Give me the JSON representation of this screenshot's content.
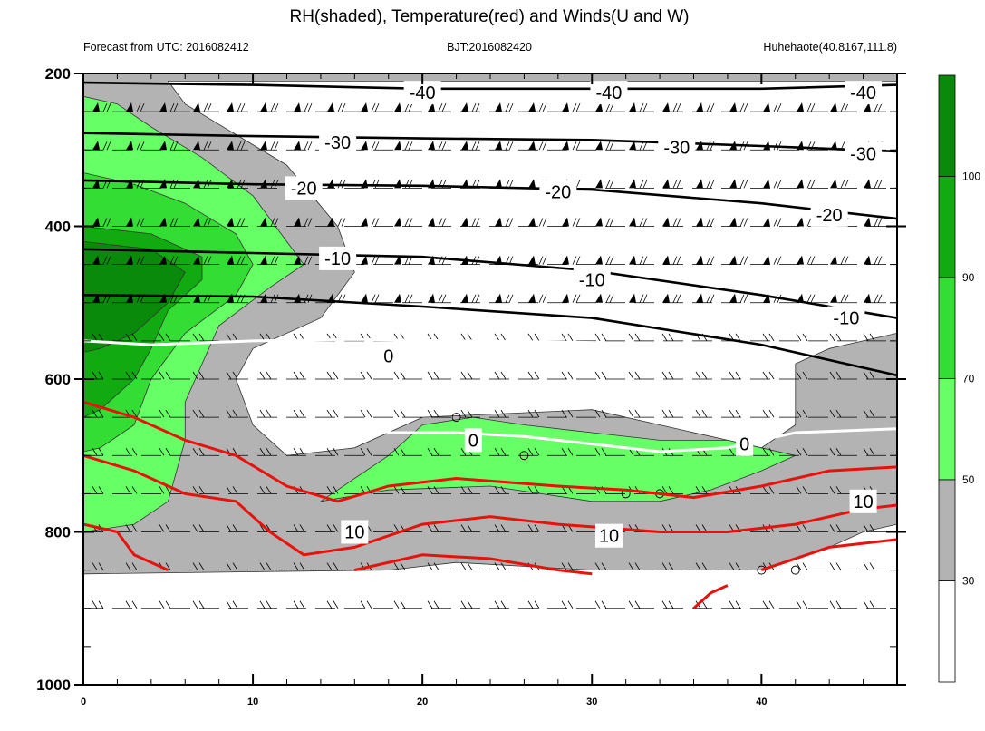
{
  "chart_data": {
    "type": "contour",
    "title": "RH(shaded), Temperature(red) and Winds(U and W)",
    "header": {
      "left": "Forecast from UTC: 2016082412",
      "center": "BJT:2016082420",
      "right": "Huhehaote(40.8167,111.8)"
    },
    "xlabel": "",
    "ylabel": "",
    "x_range": [
      0,
      48
    ],
    "y_range": [
      200,
      1000
    ],
    "y_reversed": true,
    "x_ticks": [
      0,
      10,
      20,
      30,
      40
    ],
    "y_ticks": [
      200,
      400,
      600,
      800,
      1000
    ],
    "grid": false,
    "colorbar": {
      "labels": [
        30,
        50,
        70,
        90,
        100
      ],
      "bins": [
        {
          "from": 0,
          "to": 30,
          "color": "#ffffff"
        },
        {
          "from": 30,
          "to": 50,
          "color": "#b3b3b3"
        },
        {
          "from": 50,
          "to": 70,
          "color": "#66ff66"
        },
        {
          "from": 70,
          "to": 90,
          "color": "#33dd33"
        },
        {
          "from": 90,
          "to": 100,
          "color": "#11aa11"
        },
        {
          "from": 100,
          "to": 110,
          "color": "#0a8a0a"
        }
      ]
    },
    "rh_regions": [
      {
        "level": 30,
        "color": "#b3b3b3",
        "points": [
          [
            0,
            200
          ],
          [
            48,
            200
          ],
          [
            48,
            210
          ],
          [
            5,
            210
          ],
          [
            6,
            240
          ],
          [
            9,
            280
          ],
          [
            12,
            320
          ],
          [
            15,
            400
          ],
          [
            16,
            460
          ],
          [
            14,
            520
          ],
          [
            10,
            560
          ],
          [
            9,
            600
          ],
          [
            10,
            660
          ],
          [
            12,
            700
          ],
          [
            16,
            690
          ],
          [
            20,
            650
          ],
          [
            30,
            640
          ],
          [
            40,
            690
          ],
          [
            42,
            660
          ],
          [
            42,
            580
          ],
          [
            44,
            560
          ],
          [
            48,
            540
          ],
          [
            48,
            790
          ],
          [
            46,
            800
          ],
          [
            44,
            820
          ],
          [
            40,
            850
          ],
          [
            30,
            850
          ],
          [
            22,
            840
          ],
          [
            18,
            850
          ],
          [
            0,
            855
          ]
        ]
      },
      {
        "level": 50,
        "color": "#66ff66",
        "points": [
          [
            0,
            230
          ],
          [
            2,
            240
          ],
          [
            4,
            270
          ],
          [
            7,
            310
          ],
          [
            10,
            360
          ],
          [
            12,
            420
          ],
          [
            13,
            450
          ],
          [
            11,
            480
          ],
          [
            8,
            530
          ],
          [
            7,
            580
          ],
          [
            6,
            630
          ],
          [
            6,
            680
          ],
          [
            5,
            760
          ],
          [
            3,
            790
          ],
          [
            0,
            800
          ]
        ]
      },
      {
        "level": 50,
        "color": "#66ff66",
        "points": [
          [
            14,
            760
          ],
          [
            18,
            700
          ],
          [
            20,
            660
          ],
          [
            23,
            650
          ],
          [
            26,
            660
          ],
          [
            30,
            670
          ],
          [
            34,
            680
          ],
          [
            38,
            680
          ],
          [
            42,
            700
          ],
          [
            40,
            720
          ],
          [
            37,
            745
          ],
          [
            34,
            760
          ],
          [
            30,
            760
          ],
          [
            24,
            740
          ],
          [
            18,
            745
          ]
        ]
      },
      {
        "level": 70,
        "color": "#33dd33",
        "points": [
          [
            0,
            330
          ],
          [
            3,
            345
          ],
          [
            6,
            370
          ],
          [
            9,
            410
          ],
          [
            10,
            450
          ],
          [
            9,
            490
          ],
          [
            6,
            540
          ],
          [
            4,
            600
          ],
          [
            3,
            660
          ],
          [
            1,
            690
          ],
          [
            0,
            695
          ]
        ]
      },
      {
        "level": 90,
        "color": "#11aa11",
        "points": [
          [
            0,
            400
          ],
          [
            4,
            410
          ],
          [
            7,
            440
          ],
          [
            7,
            470
          ],
          [
            5,
            510
          ],
          [
            4,
            560
          ],
          [
            3,
            600
          ],
          [
            1,
            640
          ],
          [
            0,
            650
          ]
        ]
      },
      {
        "level": 100,
        "color": "#0a8a0a",
        "points": [
          [
            0,
            420
          ],
          [
            4,
            430
          ],
          [
            6,
            460
          ],
          [
            5,
            500
          ],
          [
            3,
            540
          ],
          [
            1,
            560
          ],
          [
            0,
            565
          ]
        ]
      }
    ],
    "temperature_red": [
      {
        "label": "10",
        "points": [
          [
            0,
            630
          ],
          [
            3,
            650
          ],
          [
            6,
            680
          ],
          [
            9,
            700
          ],
          [
            12,
            740
          ],
          [
            15,
            760
          ],
          [
            18,
            740
          ],
          [
            22,
            730
          ],
          [
            28,
            740
          ],
          [
            32,
            745
          ],
          [
            36,
            755
          ],
          [
            40,
            740
          ],
          [
            44,
            720
          ],
          [
            48,
            715
          ]
        ]
      },
      {
        "label": "10",
        "points": [
          [
            0,
            700
          ],
          [
            3,
            720
          ],
          [
            6,
            750
          ],
          [
            9,
            760
          ],
          [
            11,
            800
          ],
          [
            13,
            830
          ],
          [
            16,
            820
          ],
          [
            20,
            790
          ],
          [
            24,
            780
          ],
          [
            28,
            790
          ],
          [
            34,
            800
          ],
          [
            38,
            800
          ],
          [
            42,
            790
          ],
          [
            46,
            770
          ],
          [
            48,
            765
          ]
        ]
      },
      {
        "label": "",
        "points": [
          [
            0,
            790
          ],
          [
            2,
            800
          ],
          [
            3,
            830
          ],
          [
            5,
            850
          ]
        ]
      },
      {
        "label": "",
        "points": [
          [
            16,
            850
          ],
          [
            20,
            830
          ],
          [
            24,
            835
          ],
          [
            28,
            850
          ],
          [
            30,
            855
          ]
        ]
      },
      {
        "label": "",
        "points": [
          [
            36,
            900
          ],
          [
            37,
            880
          ],
          [
            38,
            870
          ]
        ]
      },
      {
        "label": "",
        "points": [
          [
            40,
            850
          ],
          [
            44,
            820
          ],
          [
            48,
            810
          ]
        ]
      }
    ],
    "isotherm_zero_white": [
      {
        "label": "0",
        "points": [
          [
            0,
            550
          ],
          [
            4,
            555
          ],
          [
            10,
            550
          ],
          [
            16,
            548
          ],
          [
            22,
            550
          ],
          [
            30,
            552
          ],
          [
            36,
            555
          ]
        ]
      },
      {
        "label": "0",
        "points": [
          [
            17,
            660
          ],
          [
            18,
            670
          ],
          [
            22,
            670
          ],
          [
            26,
            675
          ],
          [
            30,
            685
          ],
          [
            34,
            695
          ],
          [
            38,
            690
          ],
          [
            40,
            680
          ],
          [
            42,
            670
          ],
          [
            48,
            665
          ]
        ]
      }
    ],
    "temperature_black": [
      {
        "label": "-40",
        "points": [
          [
            0,
            212
          ],
          [
            10,
            215
          ],
          [
            20,
            220
          ],
          [
            30,
            220
          ],
          [
            40,
            220
          ],
          [
            48,
            215
          ]
        ]
      },
      {
        "label": "-30",
        "points": [
          [
            0,
            278
          ],
          [
            10,
            282
          ],
          [
            20,
            285
          ],
          [
            30,
            287
          ],
          [
            40,
            295
          ],
          [
            48,
            302
          ]
        ]
      },
      {
        "label": "-20",
        "points": [
          [
            0,
            340
          ],
          [
            10,
            345
          ],
          [
            20,
            347
          ],
          [
            30,
            352
          ],
          [
            40,
            370
          ],
          [
            48,
            390
          ]
        ]
      },
      {
        "label": "-10",
        "points": [
          [
            0,
            430
          ],
          [
            10,
            435
          ],
          [
            20,
            440
          ],
          [
            30,
            458
          ],
          [
            40,
            490
          ],
          [
            48,
            520
          ]
        ]
      },
      {
        "label": "",
        "points": [
          [
            0,
            490
          ],
          [
            10,
            492
          ],
          [
            20,
            505
          ],
          [
            30,
            520
          ],
          [
            40,
            555
          ],
          [
            48,
            595
          ]
        ]
      }
    ],
    "contour_labels": [
      {
        "text": "-40",
        "color": "black",
        "x": 20,
        "y": 225
      },
      {
        "text": "-40",
        "color": "black",
        "x": 31,
        "y": 225
      },
      {
        "text": "-40",
        "color": "black",
        "x": 46,
        "y": 225
      },
      {
        "text": "-30",
        "color": "black",
        "x": 15,
        "y": 290
      },
      {
        "text": "-30",
        "color": "black",
        "x": 35,
        "y": 297
      },
      {
        "text": "-30",
        "color": "black",
        "x": 46,
        "y": 305
      },
      {
        "text": "-20",
        "color": "black",
        "x": 13,
        "y": 350
      },
      {
        "text": "-20",
        "color": "black",
        "x": 28,
        "y": 355
      },
      {
        "text": "-20",
        "color": "black",
        "x": 44,
        "y": 385
      },
      {
        "text": "-10",
        "color": "black",
        "x": 15,
        "y": 442
      },
      {
        "text": "-10",
        "color": "black",
        "x": 30,
        "y": 470
      },
      {
        "text": "-10",
        "color": "black",
        "x": 45,
        "y": 520
      },
      {
        "text": "0",
        "color": "black",
        "x": 18,
        "y": 570
      },
      {
        "text": "0",
        "color": "black",
        "x": 23,
        "y": 680
      },
      {
        "text": "0",
        "color": "black",
        "x": 39,
        "y": 685
      },
      {
        "text": "10",
        "color": "black",
        "x": 16,
        "y": 800
      },
      {
        "text": "10",
        "color": "black",
        "x": 31,
        "y": 805
      },
      {
        "text": "10",
        "color": "black",
        "x": 46,
        "y": 760
      }
    ],
    "wind_levels": [
      250,
      300,
      350,
      400,
      450,
      500,
      550,
      600,
      650,
      700,
      750,
      800,
      850,
      900
    ],
    "calm_circles": [
      [
        22,
        650
      ],
      [
        26,
        700
      ],
      [
        32,
        750
      ],
      [
        34,
        750
      ],
      [
        40,
        850
      ],
      [
        42,
        850
      ]
    ]
  }
}
